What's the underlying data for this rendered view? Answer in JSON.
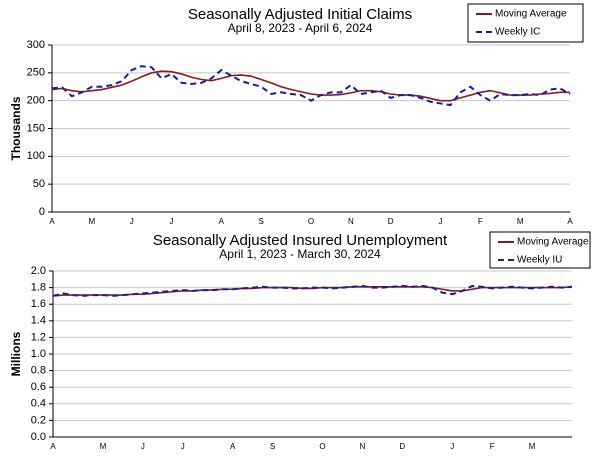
{
  "chart_data": [
    {
      "type": "line",
      "title": "Seasonally Adjusted Initial Claims",
      "subtitle": "April 8, 2023 - April 6, 2024",
      "ylabel": "Thousands",
      "categories": [
        "A",
        null,
        null,
        null,
        "M",
        null,
        null,
        null,
        "J",
        null,
        null,
        null,
        "J",
        null,
        null,
        null,
        null,
        "A",
        null,
        null,
        null,
        "S",
        null,
        null,
        null,
        null,
        "O",
        null,
        null,
        null,
        "N",
        null,
        null,
        null,
        "D",
        null,
        null,
        null,
        null,
        "J",
        null,
        null,
        null,
        "F",
        null,
        null,
        null,
        "M",
        null,
        null,
        null,
        null,
        "A"
      ],
      "series": [
        {
          "name": "Moving Average",
          "color": "#8b1a1a",
          "dashed": false,
          "values": [
            220,
            222,
            218,
            216,
            218,
            220,
            224,
            228,
            235,
            243,
            250,
            253,
            252,
            248,
            242,
            238,
            236,
            240,
            245,
            246,
            244,
            238,
            232,
            225,
            220,
            216,
            212,
            210,
            210,
            211,
            214,
            218,
            218,
            216,
            212,
            210,
            210,
            208,
            204,
            200,
            200,
            205,
            210,
            215,
            218,
            214,
            210,
            210,
            210,
            212,
            213,
            215,
            215
          ]
        },
        {
          "name": "Weekly IC",
          "color": "#1a1aa8",
          "dashed": true,
          "values": [
            222,
            224,
            208,
            215,
            225,
            225,
            228,
            235,
            255,
            262,
            260,
            240,
            248,
            232,
            230,
            232,
            240,
            255,
            245,
            235,
            230,
            225,
            212,
            215,
            212,
            210,
            200,
            210,
            215,
            215,
            228,
            212,
            215,
            218,
            205,
            210,
            210,
            205,
            198,
            195,
            192,
            215,
            225,
            210,
            200,
            212,
            210,
            210,
            212,
            210,
            220,
            222,
            212
          ]
        }
      ],
      "ylim": [
        0,
        300
      ],
      "yticks": [
        0,
        50,
        100,
        150,
        200,
        250,
        300
      ],
      "grid": true,
      "legend": "top-right"
    },
    {
      "type": "line",
      "title": "Seasonally Adjusted Insured Unemployment",
      "subtitle": "April 1, 2023 - March 30, 2024",
      "ylabel": "Millions",
      "categories": [
        "A",
        null,
        null,
        null,
        null,
        "M",
        null,
        null,
        null,
        "J",
        null,
        null,
        null,
        "J",
        null,
        null,
        null,
        null,
        "A",
        null,
        null,
        null,
        "S",
        null,
        null,
        null,
        null,
        "O",
        null,
        null,
        null,
        "N",
        null,
        null,
        null,
        "D",
        null,
        null,
        null,
        null,
        "J",
        null,
        null,
        null,
        "F",
        null,
        null,
        null,
        "M",
        null,
        null,
        null,
        null
      ],
      "series": [
        {
          "name": "Moving Average",
          "color": "#8b1a1a",
          "dashed": false,
          "values": [
            1.7,
            1.71,
            1.71,
            1.71,
            1.71,
            1.71,
            1.71,
            1.71,
            1.72,
            1.72,
            1.73,
            1.74,
            1.75,
            1.76,
            1.76,
            1.77,
            1.77,
            1.78,
            1.78,
            1.79,
            1.79,
            1.8,
            1.8,
            1.8,
            1.8,
            1.79,
            1.79,
            1.8,
            1.8,
            1.8,
            1.81,
            1.81,
            1.81,
            1.81,
            1.81,
            1.81,
            1.81,
            1.81,
            1.8,
            1.78,
            1.76,
            1.76,
            1.78,
            1.8,
            1.8,
            1.8,
            1.8,
            1.8,
            1.8,
            1.8,
            1.8,
            1.8,
            1.81
          ]
        },
        {
          "name": "Weekly IU",
          "color": "#1a1aa8",
          "dashed": true,
          "values": [
            1.7,
            1.73,
            1.71,
            1.7,
            1.71,
            1.71,
            1.7,
            1.71,
            1.72,
            1.73,
            1.74,
            1.75,
            1.76,
            1.77,
            1.76,
            1.77,
            1.77,
            1.78,
            1.78,
            1.79,
            1.8,
            1.81,
            1.8,
            1.8,
            1.79,
            1.79,
            1.8,
            1.8,
            1.79,
            1.8,
            1.81,
            1.82,
            1.8,
            1.8,
            1.81,
            1.82,
            1.81,
            1.82,
            1.8,
            1.74,
            1.72,
            1.76,
            1.82,
            1.81,
            1.79,
            1.8,
            1.81,
            1.8,
            1.79,
            1.8,
            1.81,
            1.8,
            1.81
          ]
        }
      ],
      "ylim": [
        0,
        2
      ],
      "yticks": [
        {
          "value": 0,
          "label": "0.0"
        },
        {
          "value": 0.2,
          "label": "0.2"
        },
        {
          "value": 0.4,
          "label": "0.4"
        },
        {
          "value": 0.6,
          "label": "0.6"
        },
        {
          "value": 0.8,
          "label": "0.8"
        },
        {
          "value": 1,
          "label": "1.0"
        },
        {
          "value": 1.2,
          "label": "1.2"
        },
        {
          "value": 1.4,
          "label": "1.4"
        },
        {
          "value": 1.6,
          "label": "1.6"
        },
        {
          "value": 1.8,
          "label": "1.8"
        },
        {
          "value": 2,
          "label": "2.0"
        }
      ],
      "grid": true,
      "legend": "top-right"
    }
  ]
}
